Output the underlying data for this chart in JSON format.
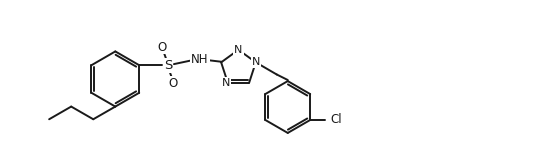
{
  "background_color": "#ffffff",
  "line_color": "#1a1a1a",
  "line_width": 1.4,
  "font_size": 8.5,
  "figsize": [
    5.56,
    1.58
  ],
  "dpi": 100,
  "xlim": [
    0.0,
    10.0
  ],
  "ylim": [
    0.0,
    2.84
  ]
}
